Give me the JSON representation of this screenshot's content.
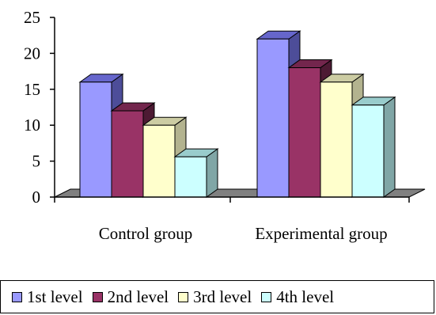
{
  "chart_data": {
    "type": "bar",
    "style": "3d-clustered-column",
    "categories": [
      "Control group",
      "Experimental group"
    ],
    "series": [
      {
        "name": "1st level",
        "values": [
          16,
          22
        ],
        "color": "#9999FF",
        "side_color": "#4D4D99",
        "top_color": "#6666CC"
      },
      {
        "name": "2nd level",
        "values": [
          12,
          18
        ],
        "color": "#993366",
        "side_color": "#4D1A33",
        "top_color": "#73264D"
      },
      {
        "name": "3rd level",
        "values": [
          10,
          16
        ],
        "color": "#FFFFCC",
        "side_color": "#B3B38F",
        "top_color": "#CCCCA3"
      },
      {
        "name": "4th level",
        "values": [
          5.6,
          12.8
        ],
        "color": "#CCFFFF",
        "side_color": "#80A6A6",
        "top_color": "#99CCCC"
      }
    ],
    "ylim": [
      0,
      25
    ],
    "yticks": [
      "0",
      "5",
      "10",
      "15",
      "20",
      "25"
    ],
    "gridlines": false,
    "legend_position": "bottom",
    "floor_color": "#808080"
  }
}
